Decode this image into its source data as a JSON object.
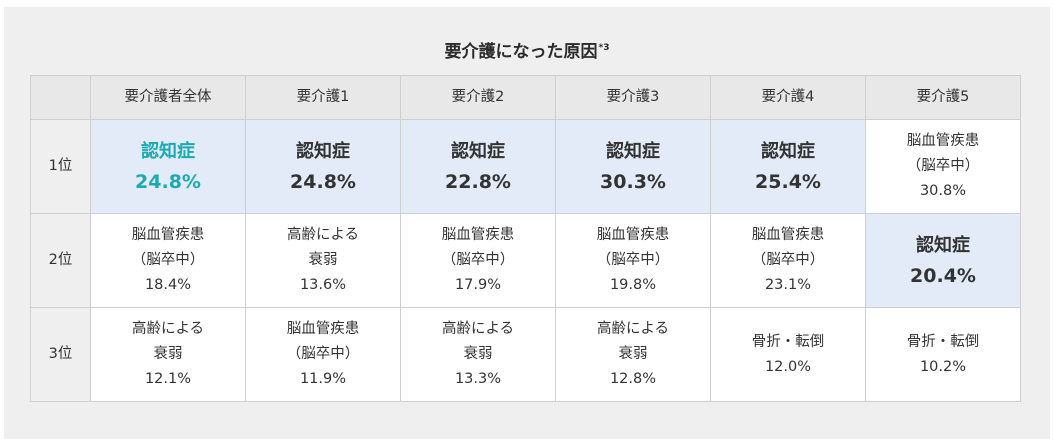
{
  "title": "要介護になった原因",
  "footnote": "*3",
  "columns": [
    "要介護者全体",
    "要介護1",
    "要介護2",
    "要介護3",
    "要介護4",
    "要介護5"
  ],
  "rows": [
    {
      "rank": "1位",
      "cells": [
        {
          "lines": [
            "認知症",
            "24.8%"
          ],
          "emphasis": true,
          "accent": true
        },
        {
          "lines": [
            "認知症",
            "24.8%"
          ],
          "emphasis": true
        },
        {
          "lines": [
            "認知症",
            "22.8%"
          ],
          "emphasis": true
        },
        {
          "lines": [
            "認知症",
            "30.3%"
          ],
          "emphasis": true
        },
        {
          "lines": [
            "認知症",
            "25.4%"
          ],
          "emphasis": true
        },
        {
          "lines": [
            "脳血管疾患",
            "（脳卒中）",
            "30.8%"
          ]
        }
      ]
    },
    {
      "rank": "2位",
      "cells": [
        {
          "lines": [
            "脳血管疾患",
            "（脳卒中）",
            "18.4%"
          ]
        },
        {
          "lines": [
            "高齢による",
            "衰弱",
            "13.6%"
          ]
        },
        {
          "lines": [
            "脳血管疾患",
            "（脳卒中）",
            "17.9%"
          ]
        },
        {
          "lines": [
            "脳血管疾患",
            "（脳卒中）",
            "19.8%"
          ]
        },
        {
          "lines": [
            "脳血管疾患",
            "（脳卒中）",
            "23.1%"
          ]
        },
        {
          "lines": [
            "認知症",
            "20.4%"
          ],
          "emphasis": true
        }
      ]
    },
    {
      "rank": "3位",
      "cells": [
        {
          "lines": [
            "高齢による",
            "衰弱",
            "12.1%"
          ]
        },
        {
          "lines": [
            "脳血管疾患",
            "（脳卒中）",
            "11.9%"
          ]
        },
        {
          "lines": [
            "高齢による",
            "衰弱",
            "13.3%"
          ]
        },
        {
          "lines": [
            "高齢による",
            "衰弱",
            "12.8%"
          ]
        },
        {
          "lines": [
            "骨折・転倒",
            "12.0%"
          ]
        },
        {
          "lines": [
            "骨折・転倒",
            "10.2%"
          ]
        }
      ]
    }
  ],
  "colors": {
    "accent": "#19aab4",
    "highlight_bg": "#e2ebf7",
    "header_bg": "#e8e8e8",
    "panel_bg": "#efefef",
    "border": "#cfcfcf"
  }
}
